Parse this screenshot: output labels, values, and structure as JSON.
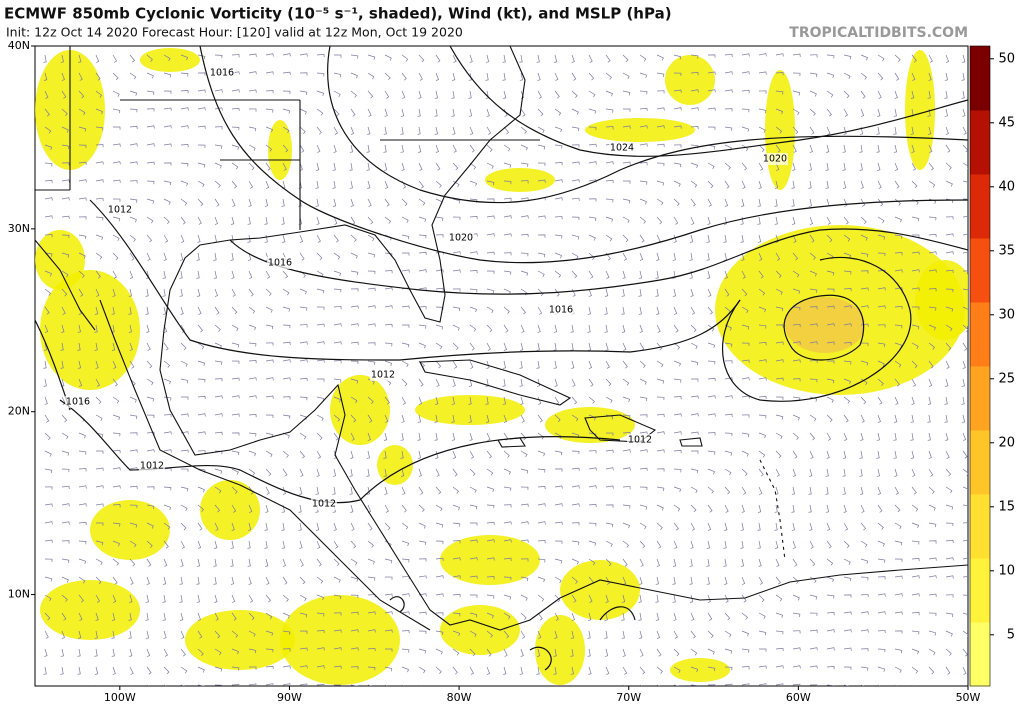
{
  "header": {
    "title": "ECMWF 850mb Cyclonic Vorticity (10⁻⁵ s⁻¹, shaded), Wind (kt), and MSLP (hPa)",
    "subtitle": "Init: 12z Oct 14 2020   Forecast Hour: [120]   valid at 12z Mon, Oct 19 2020",
    "watermark": "TROPICALTIDBITS.COM"
  },
  "map": {
    "xlim": [
      -105,
      -50
    ],
    "ylim": [
      5,
      40
    ],
    "xticks": [
      {
        "value": -100,
        "label": "100W"
      },
      {
        "value": -90,
        "label": "90W"
      },
      {
        "value": -80,
        "label": "80W"
      },
      {
        "value": -70,
        "label": "70W"
      },
      {
        "value": -60,
        "label": "60W"
      },
      {
        "value": -50,
        "label": "50W"
      }
    ],
    "yticks": [
      {
        "value": 10,
        "label": "10N"
      },
      {
        "value": 20,
        "label": "20N"
      },
      {
        "value": 30,
        "label": "30N"
      },
      {
        "value": 40,
        "label": "40N"
      }
    ],
    "isobar_labels": [
      "1016",
      "1012",
      "1016",
      "1020",
      "1024",
      "1020",
      "1016",
      "1012",
      "1016",
      "1012",
      "1012",
      "1012"
    ]
  },
  "colorbar": {
    "lim": [
      1,
      51
    ],
    "ticks": [
      5,
      10,
      15,
      20,
      25,
      30,
      35,
      40,
      45,
      50
    ],
    "colors": [
      "#ffff66",
      "#fff23a",
      "#ffe030",
      "#ffc428",
      "#ffa420",
      "#ff7e18",
      "#f55010",
      "#dc2a08",
      "#b41004",
      "#7a0000"
    ]
  }
}
